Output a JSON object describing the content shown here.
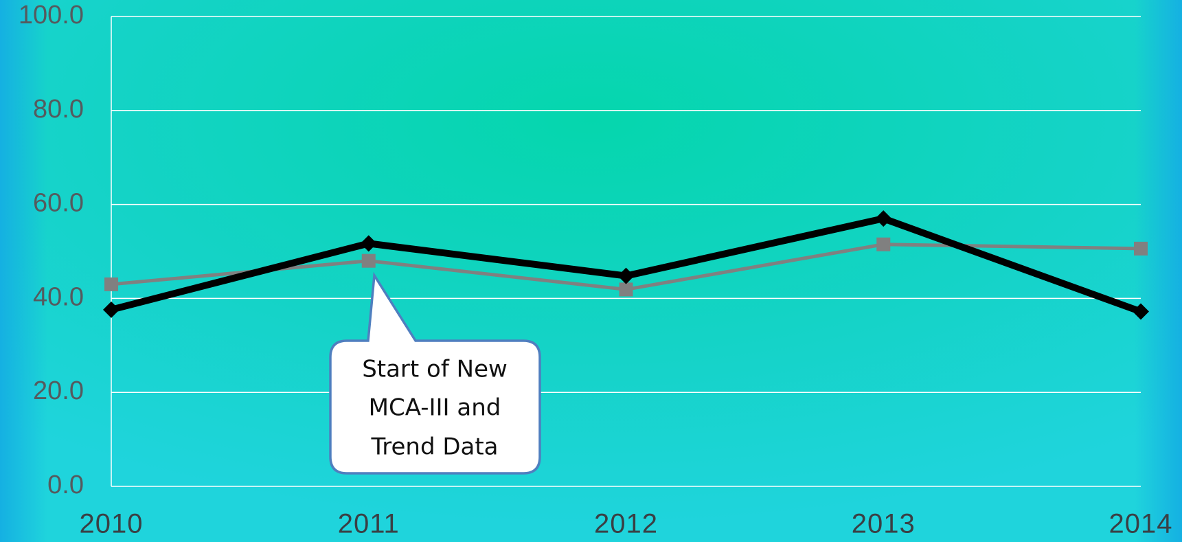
{
  "chart_data": {
    "type": "line",
    "categories": [
      "2010",
      "2011",
      "2012",
      "2013",
      "2014"
    ],
    "series": [
      {
        "color": "#000000",
        "marker": "diamond",
        "values": [
          37.6,
          51.7,
          44.8,
          57.0,
          37.2
        ]
      },
      {
        "color": "#808080",
        "marker": "square",
        "values": [
          43.0,
          48.0,
          41.9,
          51.5,
          50.6
        ]
      }
    ],
    "ylim": [
      0,
      100
    ],
    "yticks": [
      {
        "value": 0,
        "label": "0.0"
      },
      {
        "value": 20,
        "label": "20.0"
      },
      {
        "value": 40,
        "label": "40.0"
      },
      {
        "value": 60,
        "label": "60.0"
      },
      {
        "value": 80,
        "label": "80.0"
      },
      {
        "value": 100,
        "label": "100.0"
      }
    ],
    "grid": true,
    "annotation_lines": [
      "Start of New",
      "MCA-III and",
      "Trend Data"
    ]
  }
}
